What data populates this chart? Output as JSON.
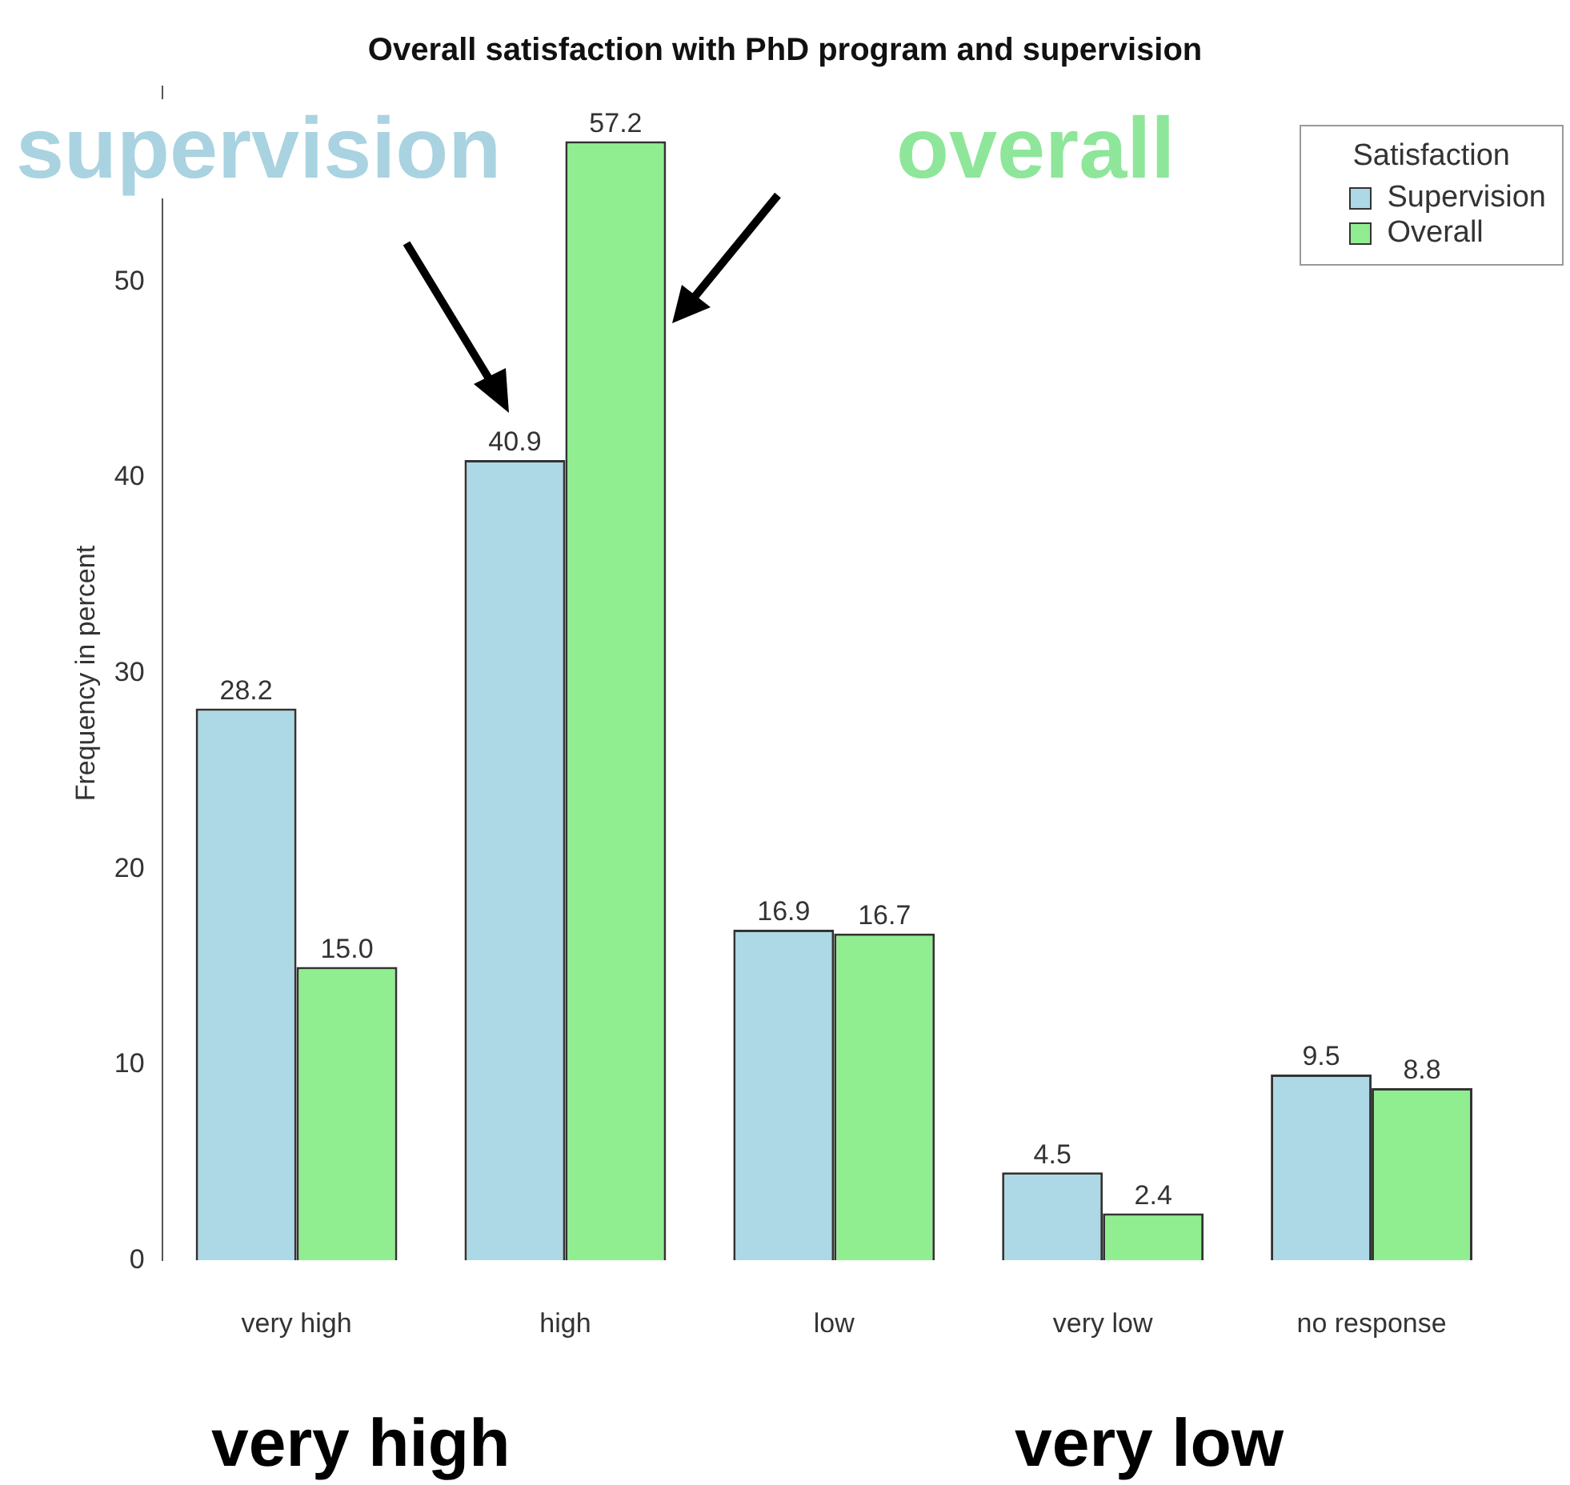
{
  "chart_data": {
    "type": "bar",
    "title": "Overall satisfaction with PhD program and supervision",
    "ylabel": "Frequency in percent",
    "legend_title": "Satisfaction",
    "categories": [
      "very high",
      "high",
      "low",
      "very low",
      "no response"
    ],
    "series": [
      {
        "name": "Supervision",
        "color": "#add8e6",
        "values": [
          28.2,
          40.9,
          16.9,
          4.5,
          9.5
        ]
      },
      {
        "name": "Overall",
        "color": "#90ee90",
        "values": [
          15.0,
          57.2,
          16.7,
          2.4,
          8.8
        ]
      }
    ],
    "value_labels": [
      [
        "28.2",
        "40.9",
        "16.9",
        "4.5",
        "9.5"
      ],
      [
        "15.0",
        "57.2",
        "16.7",
        "2.4",
        "8.8"
      ]
    ],
    "ylim": [
      0,
      60
    ],
    "yticks": [
      0,
      10,
      20,
      30,
      40,
      50
    ],
    "grid": false,
    "legend": "top right",
    "annotations": [
      "supervision",
      "overall",
      "very high",
      "very low"
    ]
  }
}
